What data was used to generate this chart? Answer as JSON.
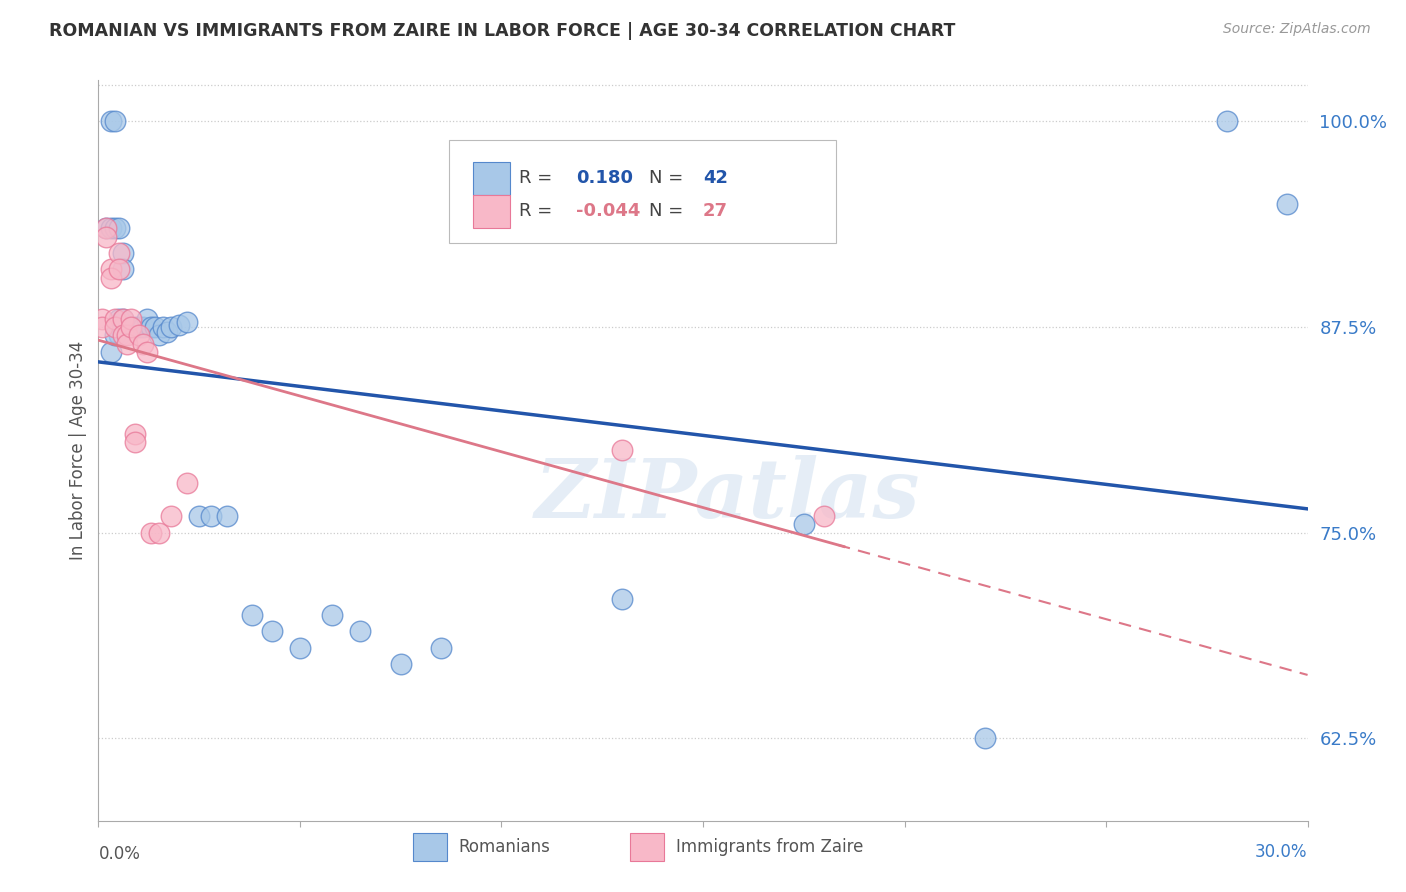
{
  "title": "ROMANIAN VS IMMIGRANTS FROM ZAIRE IN LABOR FORCE | AGE 30-34 CORRELATION CHART",
  "source": "Source: ZipAtlas.com",
  "ylabel": "In Labor Force | Age 30-34",
  "xlim": [
    0.0,
    0.3
  ],
  "ylim": [
    0.575,
    1.025
  ],
  "yticks": [
    0.625,
    0.75,
    0.875,
    1.0
  ],
  "ytick_labels": [
    "62.5%",
    "75.0%",
    "87.5%",
    "100.0%"
  ],
  "watermark_text": "ZIPatlas",
  "legend_blue_R": "0.180",
  "legend_blue_N": "42",
  "legend_pink_R": "-0.044",
  "legend_pink_N": "27",
  "blue_scatter_color": "#a8c8e8",
  "blue_scatter_edge": "#5588cc",
  "pink_scatter_color": "#f8b8c8",
  "pink_scatter_edge": "#e87898",
  "blue_line_color": "#2255aa",
  "pink_line_color": "#dd7788",
  "romanians_x": [
    0.002,
    0.003,
    0.003,
    0.004,
    0.004,
    0.005,
    0.005,
    0.005,
    0.006,
    0.006,
    0.007,
    0.008,
    0.009,
    0.01,
    0.011,
    0.012,
    0.013,
    0.014,
    0.015,
    0.016,
    0.017,
    0.018,
    0.02,
    0.022,
    0.025,
    0.028,
    0.032,
    0.038,
    0.043,
    0.05,
    0.058,
    0.065,
    0.075,
    0.085,
    0.13,
    0.175,
    0.22,
    0.28,
    0.295,
    0.003,
    0.004,
    0.006
  ],
  "romanians_y": [
    0.935,
    0.935,
    1.0,
    0.935,
    1.0,
    0.935,
    0.88,
    0.87,
    0.92,
    0.91,
    0.875,
    0.875,
    0.875,
    0.875,
    0.875,
    0.88,
    0.875,
    0.875,
    0.87,
    0.875,
    0.872,
    0.875,
    0.876,
    0.878,
    0.76,
    0.76,
    0.76,
    0.7,
    0.69,
    0.68,
    0.7,
    0.69,
    0.67,
    0.68,
    0.71,
    0.755,
    0.625,
    1.0,
    0.95,
    0.86,
    0.87,
    0.88
  ],
  "zaire_x": [
    0.001,
    0.001,
    0.002,
    0.002,
    0.003,
    0.003,
    0.004,
    0.004,
    0.005,
    0.005,
    0.006,
    0.006,
    0.007,
    0.007,
    0.008,
    0.008,
    0.009,
    0.009,
    0.01,
    0.011,
    0.012,
    0.013,
    0.015,
    0.018,
    0.022,
    0.13,
    0.18
  ],
  "zaire_y": [
    0.88,
    0.875,
    0.935,
    0.93,
    0.91,
    0.905,
    0.88,
    0.875,
    0.92,
    0.91,
    0.88,
    0.87,
    0.87,
    0.865,
    0.88,
    0.875,
    0.81,
    0.805,
    0.87,
    0.865,
    0.86,
    0.75,
    0.75,
    0.76,
    0.78,
    0.8,
    0.76
  ]
}
